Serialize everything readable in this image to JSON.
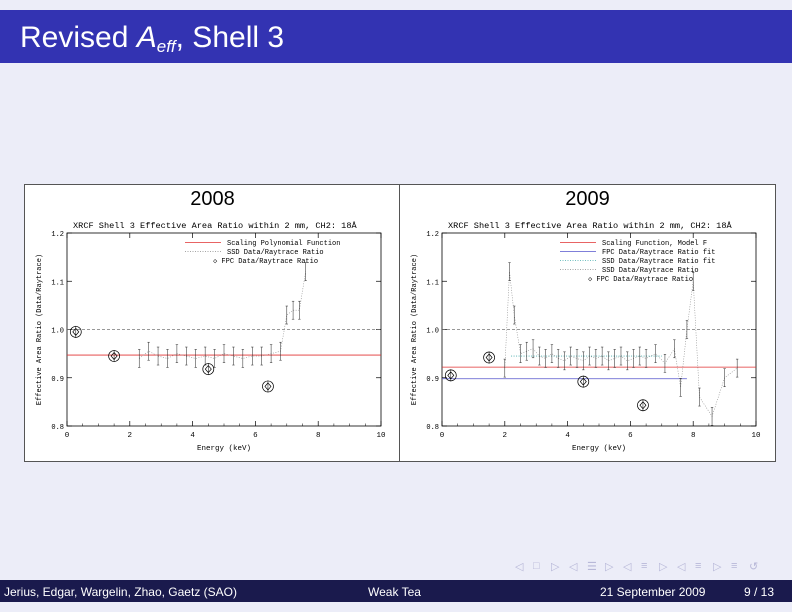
{
  "slide": {
    "title_main": "Revised ",
    "title_var": "A",
    "title_sub": "eff",
    "title_rest": ", Shell 3"
  },
  "panels": [
    {
      "year": "2008",
      "plot_title": "XRCF Shell 3 Effective Area Ratio within 2 mm, CH2: 18Å",
      "xlabel": "Energy (keV)",
      "ylabel": "Effective Area Ratio (Data/Raytrace)",
      "x_ticks": [
        "0",
        "2",
        "4",
        "6",
        "8",
        "10"
      ],
      "y_ticks": [
        "0.8",
        "0.9",
        "1.0",
        "1.1",
        "1.2"
      ],
      "legend": [
        "Scaling Polynomial Function",
        "SSD Data/Raytrace Ratio",
        "◇ FPC Data/Raytrace Ratio"
      ]
    },
    {
      "year": "2009",
      "plot_title": "XRCF Shell 3 Effective Area Ratio within 2 mm, CH2: 18Å",
      "xlabel": "Energy (keV)",
      "ylabel": "Effective Area Ratio (Data/Raytrace)",
      "x_ticks": [
        "0",
        "2",
        "4",
        "6",
        "8",
        "10"
      ],
      "y_ticks": [
        "0.8",
        "0.9",
        "1.0",
        "1.1",
        "1.2"
      ],
      "legend": [
        "Scaling Function, Model F",
        "FPC Data/Raytrace Ratio fit",
        "SSD Data/Raytrace Ratio fit",
        "SSD Data/Raytrace Ratio",
        "◇ FPC Data/Raytrace Ratio"
      ]
    }
  ],
  "chart_data": [
    {
      "type": "scatter",
      "title": "XRCF Shell 3 Effective Area Ratio within 2 mm, CH2: 18Å",
      "xlabel": "Energy (keV)",
      "ylabel": "Effective Area Ratio (Data/Raytrace)",
      "xlim": [
        0,
        10
      ],
      "ylim": [
        0.8,
        1.2
      ],
      "reference_line": 1.0,
      "series": [
        {
          "name": "Scaling Polynomial Function",
          "kind": "line",
          "color": "#e03030",
          "x": [
            0,
            10
          ],
          "y": [
            0.947,
            0.947
          ]
        },
        {
          "name": "SSD Data/Raytrace Ratio",
          "kind": "dotted",
          "color": "#888888",
          "x": [
            2.3,
            2.6,
            2.9,
            3.2,
            3.5,
            3.8,
            4.1,
            4.4,
            4.7,
            5.0,
            5.3,
            5.6,
            5.9,
            6.2,
            6.5,
            6.8,
            7.0,
            7.2,
            7.4,
            7.6
          ],
          "y": [
            0.94,
            0.955,
            0.945,
            0.94,
            0.95,
            0.945,
            0.94,
            0.945,
            0.94,
            0.95,
            0.945,
            0.94,
            0.945,
            0.945,
            0.95,
            0.955,
            1.03,
            1.04,
            1.04,
            1.12
          ]
        },
        {
          "name": "FPC Data/Raytrace Ratio",
          "kind": "diamond",
          "color": "#000000",
          "x": [
            0.28,
            1.5,
            4.5,
            6.4
          ],
          "y": [
            0.995,
            0.945,
            0.918,
            0.882
          ]
        }
      ]
    },
    {
      "type": "scatter",
      "title": "XRCF Shell 3 Effective Area Ratio within 2 mm, CH2: 18Å",
      "xlabel": "Energy (keV)",
      "ylabel": "Effective Area Ratio (Data/Raytrace)",
      "xlim": [
        0,
        10
      ],
      "ylim": [
        0.8,
        1.2
      ],
      "reference_line": 1.0,
      "series": [
        {
          "name": "Scaling Function, Model F",
          "kind": "line",
          "color": "#e03030",
          "x": [
            0,
            10
          ],
          "y": [
            0.922,
            0.922
          ]
        },
        {
          "name": "FPC Data/Raytrace Ratio fit",
          "kind": "line",
          "color": "#5555cc",
          "x": [
            0,
            7.8
          ],
          "y": [
            0.898,
            0.898
          ]
        },
        {
          "name": "SSD Data/Raytrace Ratio fit",
          "kind": "dotted",
          "color": "#44aaaa",
          "x": [
            2.2,
            7.0
          ],
          "y": [
            0.945,
            0.945
          ]
        },
        {
          "name": "SSD Data/Raytrace Ratio",
          "kind": "dotted",
          "color": "#888888",
          "x": [
            2.0,
            2.15,
            2.3,
            2.5,
            2.7,
            2.9,
            3.1,
            3.3,
            3.5,
            3.7,
            3.9,
            4.1,
            4.3,
            4.5,
            4.7,
            4.9,
            5.1,
            5.3,
            5.5,
            5.7,
            5.9,
            6.1,
            6.3,
            6.5,
            6.8,
            7.1,
            7.4,
            7.6,
            7.8,
            8.0,
            8.2,
            8.6,
            9.0,
            9.4
          ],
          "y": [
            0.92,
            1.12,
            1.03,
            0.95,
            0.955,
            0.96,
            0.945,
            0.94,
            0.95,
            0.94,
            0.935,
            0.945,
            0.94,
            0.935,
            0.945,
            0.94,
            0.945,
            0.935,
            0.94,
            0.945,
            0.935,
            0.94,
            0.945,
            0.94,
            0.95,
            0.93,
            0.96,
            0.88,
            1.0,
            1.1,
            0.86,
            0.82,
            0.9,
            0.92
          ]
        },
        {
          "name": "FPC Data/Raytrace Ratio",
          "kind": "diamond",
          "color": "#000000",
          "x": [
            0.28,
            1.5,
            4.5,
            6.4
          ],
          "y": [
            0.905,
            0.942,
            0.892,
            0.843
          ]
        }
      ]
    }
  ],
  "footer": {
    "authors": "Jerius, Edgar, Wargelin, Zhao, Gaetz  (SAO)",
    "talk": "Weak Tea",
    "date": "21 September 2009",
    "page": "9 / 13"
  },
  "nav": [
    "◁",
    "□",
    "▷",
    "◁",
    "☰",
    "▷",
    "◁",
    "≡",
    "▷",
    "◁",
    "≡",
    "▷",
    "≡",
    "↺"
  ]
}
